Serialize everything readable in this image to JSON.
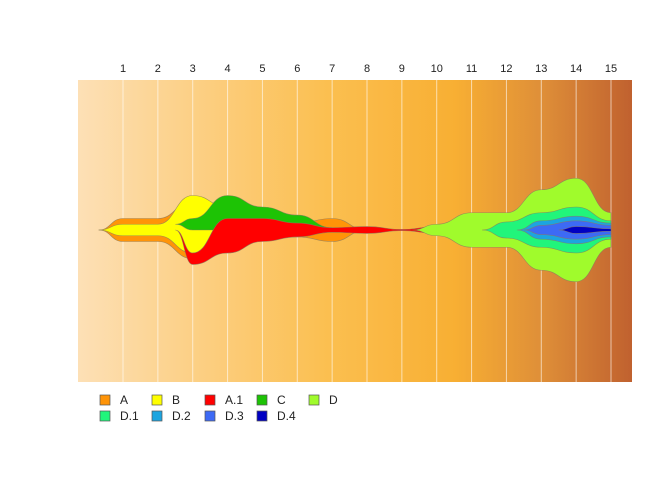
{
  "chart_data": {
    "type": "area",
    "subtype": "streamgraph (fish plot)",
    "title": "",
    "xlabel": "",
    "ylabel": "",
    "x": [
      1,
      2,
      3,
      4,
      5,
      6,
      7,
      8,
      9,
      10,
      11,
      12,
      13,
      14,
      15
    ],
    "x_tick_labels": [
      "1",
      "2",
      "3",
      "4",
      "5",
      "6",
      "7",
      "8",
      "9",
      "10",
      "11",
      "12",
      "13",
      "14",
      "15"
    ],
    "grid": "vertical lines at each time point",
    "background": "gradient from light peach to brown, left to right",
    "legend_position": "bottom-left",
    "legend_rows": [
      [
        "A",
        "B",
        "A.1",
        "C",
        "D"
      ],
      [
        "D.1",
        "D.2",
        "D.3",
        "D.4"
      ]
    ],
    "series": [
      {
        "name": "A",
        "color": "#FF9408",
        "start": 0.3,
        "values": [
          10,
          10,
          25,
          20,
          8,
          6,
          10,
          0,
          0,
          0,
          0,
          0,
          0,
          0,
          0
        ]
      },
      {
        "name": "B",
        "color": "#FFFF00",
        "start": 0.3,
        "parent": "A",
        "values": [
          5,
          5,
          25,
          5,
          0,
          0,
          0,
          0,
          0,
          0,
          0,
          0,
          0,
          0,
          0
        ]
      },
      {
        "name": "A.1",
        "color": "#FF0000",
        "start": 2.5,
        "parent": "A",
        "values": [
          0,
          0,
          5,
          15,
          10,
          6,
          2,
          3,
          0.5,
          3,
          4,
          0,
          0,
          0,
          0
        ]
      },
      {
        "name": "C",
        "color": "#1DC305",
        "start": 2.5,
        "parent": "B",
        "values": [
          0,
          0,
          5,
          15,
          10,
          7,
          0,
          0,
          0,
          0,
          0,
          0,
          0,
          0,
          0
        ]
      },
      {
        "name": "D",
        "color": "#A0FB2C",
        "start": 9.3,
        "parent": "A.1",
        "values": [
          0,
          0,
          0,
          0,
          0,
          0,
          0,
          0,
          0,
          5,
          15,
          15,
          35,
          45,
          15
        ]
      },
      {
        "name": "D.1",
        "color": "#21F57B",
        "start": 11.3,
        "parent": "D",
        "values": [
          0,
          0,
          0,
          0,
          0,
          0,
          0,
          0,
          0,
          0,
          0,
          7,
          15,
          20,
          8
        ]
      },
      {
        "name": "D.2",
        "color": "#1CA5E0",
        "start": 12.3,
        "parent": "D.1",
        "values": [
          0,
          0,
          0,
          0,
          0,
          0,
          0,
          0,
          0,
          0,
          0,
          0,
          8,
          12,
          6
        ]
      },
      {
        "name": "D.3",
        "color": "#3D6AF5",
        "start": 12.5,
        "parent": "D.2",
        "values": [
          0,
          0,
          0,
          0,
          0,
          0,
          0,
          0,
          0,
          0,
          0,
          0,
          4,
          8,
          4
        ]
      },
      {
        "name": "D.4",
        "color": "#0000C2",
        "start": 13.5,
        "parent": "D.3",
        "values": [
          0,
          0,
          0,
          0,
          0,
          0,
          0,
          0,
          0,
          0,
          0,
          0,
          0,
          3,
          1
        ]
      }
    ]
  }
}
